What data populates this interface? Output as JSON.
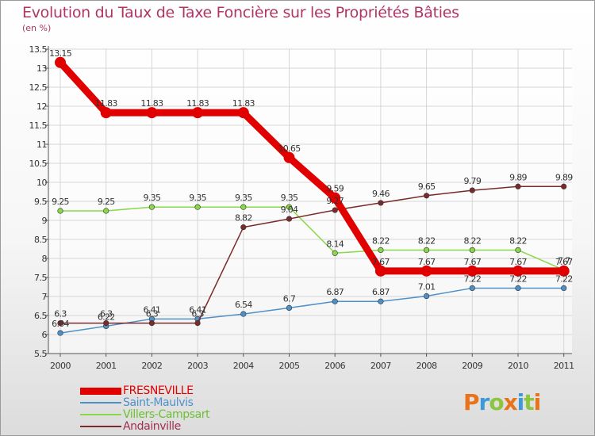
{
  "header": {
    "title": "Evolution du Taux de Taxe Foncière sur les Propriétés Bâties",
    "unit": "(en %)"
  },
  "brand": {
    "logo_text": "Proxiti",
    "letter_colors": [
      "#e8731a",
      "#3d9ad6",
      "#8cc63e",
      "#e8731a",
      "#3d9ad6",
      "#8cc63e",
      "#e8731a"
    ]
  },
  "chart_data": {
    "type": "line",
    "title": "Evolution du Taux de Taxe Foncière sur les Propriétés Bâties",
    "ylabel": "(en %)",
    "xlabel": "",
    "x": [
      "2000",
      "2001",
      "2002",
      "2003",
      "2004",
      "2005",
      "2006",
      "2007",
      "2008",
      "2009",
      "2010",
      "2011"
    ],
    "ylim": [
      5.5,
      13.5
    ],
    "yticks": [
      "5.5",
      "6",
      "6.5",
      "7",
      "7.5",
      "8",
      "8.5",
      "9",
      "9.5",
      "10",
      "10.5",
      "11",
      "11.5",
      "12",
      "12.5",
      "13",
      "13.5"
    ],
    "grid": true,
    "legend_position": "bottom-left",
    "series": [
      {
        "name": "FRESNEVILLE",
        "color": "#e00000",
        "values": [
          13.15,
          11.83,
          11.83,
          11.83,
          11.83,
          10.65,
          9.59,
          7.67,
          7.67,
          7.67,
          7.67,
          7.67
        ],
        "labels": [
          "13.15",
          "11.83",
          "11.83",
          "11.83",
          "11.83",
          "10.65",
          "9.59",
          "7.67",
          "7.67",
          "7.67",
          "7.67",
          "7.67"
        ]
      },
      {
        "name": "Saint-Maulvis",
        "color": "#4e90c8",
        "values": [
          6.04,
          6.22,
          6.41,
          6.41,
          6.54,
          6.7,
          6.87,
          6.87,
          7.01,
          7.22,
          7.22,
          7.22
        ],
        "labels": [
          "6.04",
          "6.22",
          "6.41",
          "6.41",
          "6.54",
          "6.7",
          "6.87",
          "6.87",
          "7.01",
          "7.22",
          "7.22",
          "7.22"
        ]
      },
      {
        "name": "Villers-Campsart",
        "color": "#88d848",
        "values": [
          9.25,
          9.25,
          9.35,
          9.35,
          9.35,
          9.35,
          8.14,
          8.22,
          8.22,
          8.22,
          8.22,
          7.7
        ],
        "labels": [
          "9.25",
          "9.25",
          "9.35",
          "9.35",
          "9.35",
          "9.35",
          "8.14",
          "8.22",
          "8.22",
          "8.22",
          "8.22",
          "7.7"
        ]
      },
      {
        "name": "Andainville",
        "color": "#7a2a2a",
        "values": [
          6.3,
          6.3,
          6.3,
          6.3,
          8.82,
          9.04,
          9.27,
          9.46,
          9.65,
          9.79,
          9.89,
          9.89
        ],
        "labels": [
          "6.3",
          "6.3",
          "6.3",
          "6.3",
          "8.82",
          "9.04",
          "9.27",
          "9.46",
          "9.65",
          "9.79",
          "9.89",
          "9.89"
        ]
      }
    ]
  }
}
